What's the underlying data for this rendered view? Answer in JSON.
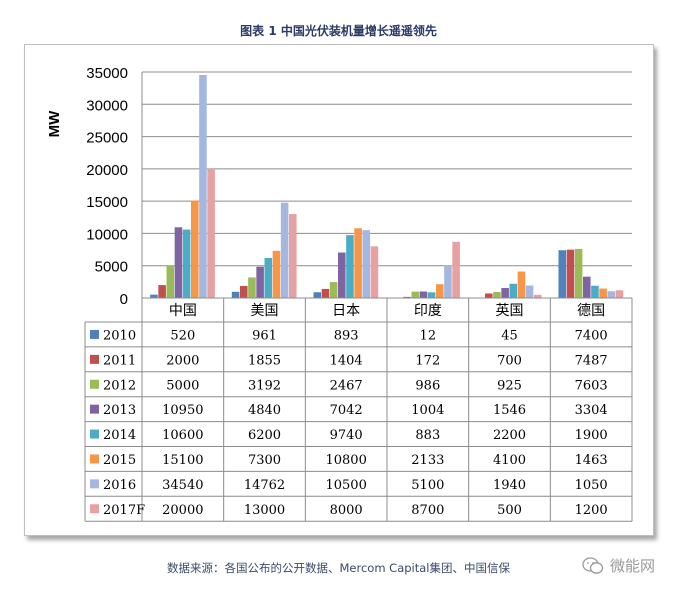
{
  "caption": "图表 1 中国光伏装机量增长遥遥领先",
  "source": "数据来源：各国公布的公开数据、Mercom Capital集团、中国信保",
  "watermark": "微能网",
  "chart_data": {
    "type": "bar",
    "title": "",
    "ylabel": "MW",
    "xlabel": "",
    "ylim": [
      0,
      35000
    ],
    "yticks": [
      0,
      5000,
      10000,
      15000,
      20000,
      25000,
      30000,
      35000
    ],
    "grid": true,
    "legend": "data-table",
    "categories": [
      "中国",
      "美国",
      "日本",
      "印度",
      "英国",
      "德国"
    ],
    "series": [
      {
        "name": "2010",
        "color": "#4f81bd",
        "values": [
          520,
          961,
          893,
          12,
          45,
          7400
        ]
      },
      {
        "name": "2011",
        "color": "#c0504d",
        "values": [
          2000,
          1855,
          1404,
          172,
          700,
          7487
        ]
      },
      {
        "name": "2012",
        "color": "#9bbb59",
        "values": [
          5000,
          3192,
          2467,
          986,
          925,
          7603
        ]
      },
      {
        "name": "2013",
        "color": "#8064a2",
        "values": [
          10950,
          4840,
          7042,
          1004,
          1546,
          3304
        ]
      },
      {
        "name": "2014",
        "color": "#4bacc6",
        "values": [
          10600,
          6200,
          9740,
          883,
          2200,
          1900
        ]
      },
      {
        "name": "2015",
        "color": "#f79646",
        "values": [
          15100,
          7300,
          10800,
          2133,
          4100,
          1463
        ]
      },
      {
        "name": "2016",
        "color": "#a5b6e0",
        "values": [
          34540,
          14762,
          10500,
          5100,
          1940,
          1050
        ]
      },
      {
        "name": "2017F",
        "color": "#e6a1a3",
        "values": [
          20000,
          13000,
          8000,
          8700,
          500,
          1200
        ]
      }
    ]
  }
}
